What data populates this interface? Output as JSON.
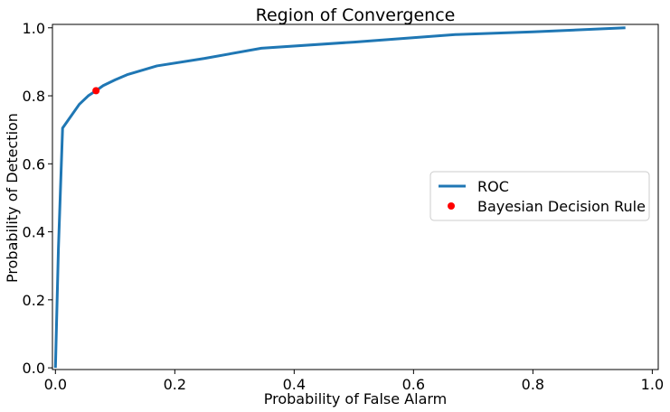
{
  "chart_data": {
    "type": "line",
    "title": "Region of Convergence",
    "xlabel": "Probability of False Alarm",
    "ylabel": "Probability of Detection",
    "xlim": [
      -0.005,
      1.01
    ],
    "ylim": [
      -0.005,
      1.01
    ],
    "xticks": [
      "0.0",
      "0.2",
      "0.4",
      "0.6",
      "0.8",
      "1.0"
    ],
    "yticks": [
      "0.0",
      "0.2",
      "0.4",
      "0.6",
      "0.8",
      "1.0"
    ],
    "grid": false,
    "legend_position": "center-right",
    "series": [
      {
        "name": "ROC",
        "kind": "line",
        "color": "#1f77b4",
        "x": [
          0.0,
          0.005,
          0.012,
          0.02,
          0.04,
          0.055,
          0.068,
          0.08,
          0.1,
          0.12,
          0.17,
          0.25,
          0.345,
          0.5,
          0.67,
          0.8,
          0.955
        ],
        "y": [
          0.0,
          0.35,
          0.705,
          0.725,
          0.775,
          0.8,
          0.815,
          0.83,
          0.847,
          0.862,
          0.888,
          0.91,
          0.94,
          0.958,
          0.98,
          0.988,
          1.0
        ]
      },
      {
        "name": "Bayesian Decision Rule",
        "kind": "point",
        "color": "#ff0000",
        "x": [
          0.068
        ],
        "y": [
          0.815
        ]
      }
    ]
  }
}
